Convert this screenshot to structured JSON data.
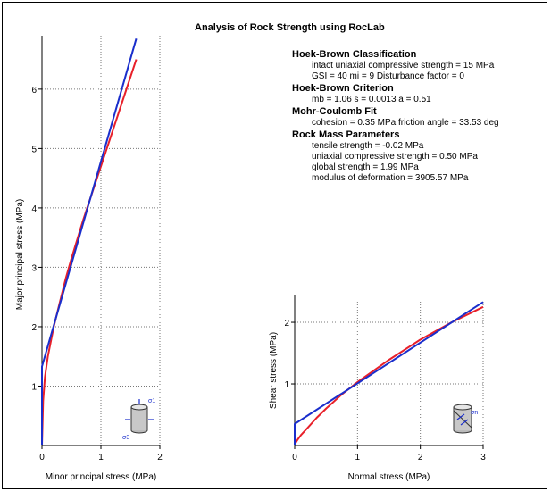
{
  "title": "Analysis of Rock Strength using RocLab",
  "info": {
    "sections": [
      {
        "heading": "Hoek-Brown Classification",
        "lines": [
          "intact uniaxial compressive strength = 15 MPa",
          "GSI = 40    mi = 9    Disturbance factor = 0"
        ]
      },
      {
        "heading": "Hoek-Brown Criterion",
        "lines": [
          "mb = 1.06    s = 0.0013    a = 0.51"
        ]
      },
      {
        "heading": "Mohr-Coulomb Fit",
        "lines": [
          "cohesion = 0.35 MPa    friction angle = 33.53 deg"
        ]
      },
      {
        "heading": "Rock Mass Parameters",
        "lines": [
          "tensile strength = -0.02 MPa",
          "uniaxial compressive strength = 0.50 MPa",
          "global strength = 1.99 MPa",
          "modulus of deformation = 3905.57 MPa"
        ]
      }
    ]
  },
  "chart_data": [
    {
      "type": "line",
      "xlabel": "Minor principal stress (MPa)",
      "ylabel": "Major principal stress (MPa)",
      "xlim": [
        0,
        2
      ],
      "ylim": [
        0,
        6.9
      ],
      "xticks": [
        0,
        1,
        2
      ],
      "yticks": [
        1,
        2,
        3,
        4,
        5,
        6
      ],
      "grid": true,
      "icon_labels": [
        "σ1",
        "σ3"
      ],
      "series": [
        {
          "color": "#e8202a",
          "x": [
            0,
            0.02,
            0.05,
            0.1,
            0.2,
            0.3,
            0.4,
            0.5,
            0.7,
            0.9,
            1.1,
            1.3,
            1.6
          ],
          "y": [
            0,
            0.75,
            1.15,
            1.5,
            2.0,
            2.4,
            2.8,
            3.15,
            3.8,
            4.4,
            5.0,
            5.6,
            6.5
          ]
        },
        {
          "color": "#1a2ecc",
          "x": [
            0,
            0,
            1.6
          ],
          "y": [
            0,
            1.33,
            6.85
          ]
        }
      ]
    },
    {
      "type": "line",
      "xlabel": "Normal stress (MPa)",
      "ylabel": "Shear stress (MPa)",
      "xlim": [
        0,
        3
      ],
      "ylim": [
        0,
        2.45
      ],
      "xticks": [
        0,
        1,
        2,
        3
      ],
      "yticks": [
        1,
        2
      ],
      "grid": true,
      "icon_labels": [
        "σn"
      ],
      "series": [
        {
          "color": "#e8202a",
          "x": [
            0,
            0.05,
            0.1,
            0.2,
            0.35,
            0.5,
            0.75,
            1.0,
            1.5,
            2.0,
            2.5,
            3.0
          ],
          "y": [
            0.02,
            0.1,
            0.17,
            0.28,
            0.45,
            0.6,
            0.83,
            1.03,
            1.39,
            1.72,
            2.0,
            2.25
          ]
        },
        {
          "color": "#1a2ecc",
          "x": [
            0,
            0,
            3.0
          ],
          "y": [
            0,
            0.35,
            2.33
          ]
        }
      ]
    }
  ]
}
